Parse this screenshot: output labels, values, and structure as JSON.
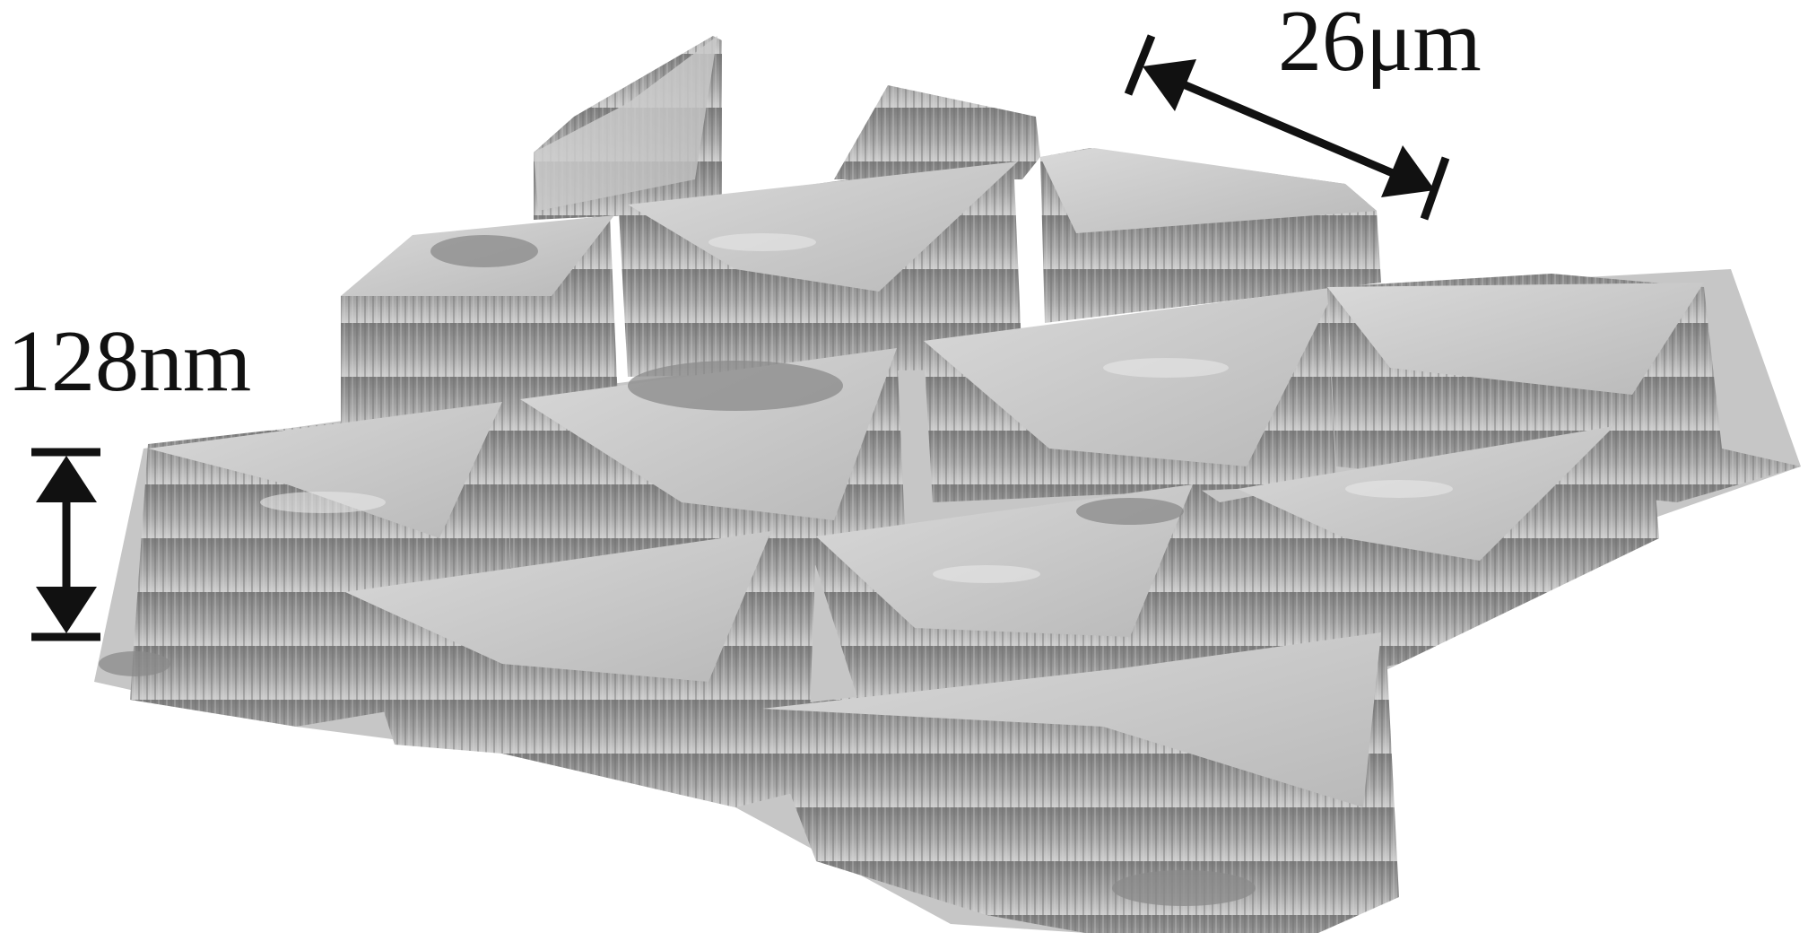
{
  "figure": {
    "height_scale_label": "128nm",
    "width_scale_label": "26μm",
    "surface_color": "#b8b8b8",
    "ink_color": "#111111"
  }
}
